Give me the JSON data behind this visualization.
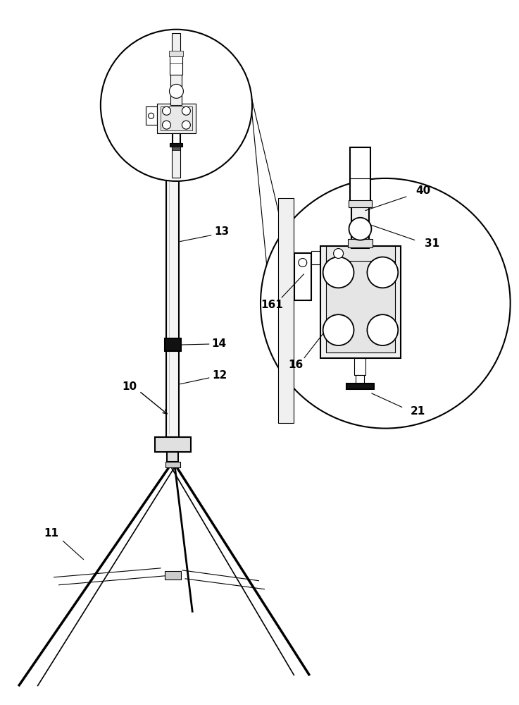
{
  "bg_color": "#ffffff",
  "lc": "#000000",
  "lw": 1.5,
  "tlw": 0.8,
  "fig_width": 7.37,
  "fig_height": 10.0,
  "font_size": 11
}
